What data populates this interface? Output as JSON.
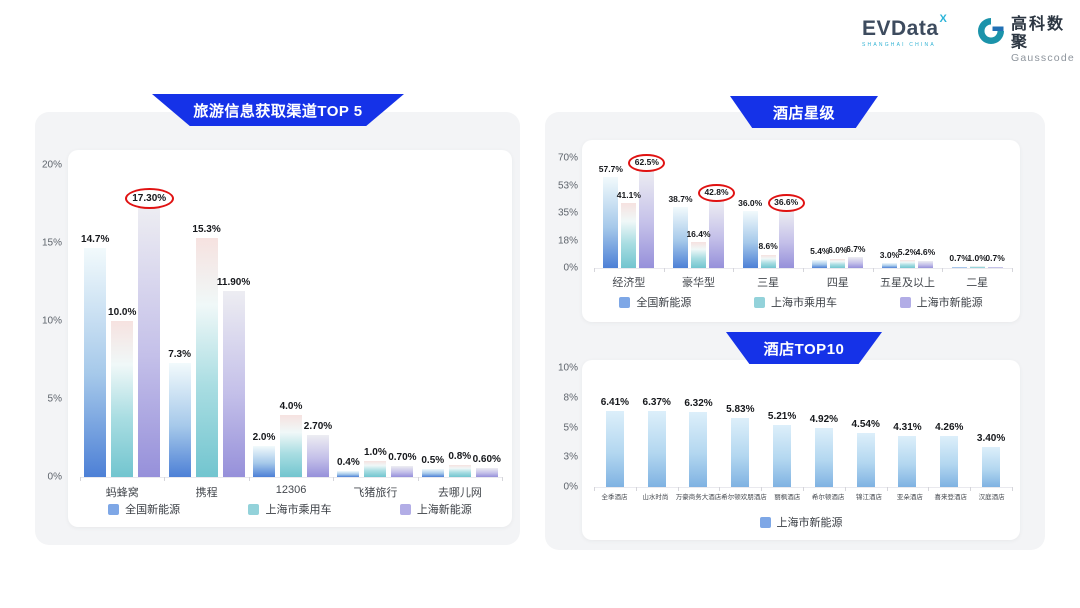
{
  "header": {
    "evdata": {
      "text": "EVData",
      "sup": "X",
      "sub": "SHANGHAI CHINA"
    },
    "gausscode": {
      "title": "高科数聚",
      "sub": "Gausscode"
    }
  },
  "colors": {
    "banner": "#1532e8",
    "circle": "#e01212",
    "panel_background": "#f3f4f6",
    "series": [
      {
        "name": "series-blue",
        "legend": "#7ea7e6",
        "gradient": [
          [
            "#f2fafc",
            0
          ],
          [
            "#a6c9ea",
            55
          ],
          [
            "#4d80d6",
            100
          ]
        ]
      },
      {
        "name": "series-teal",
        "legend": "#93d2da",
        "gradient": [
          [
            "#f6e2e0",
            0
          ],
          [
            "#f0f8f8",
            28
          ],
          [
            "#a9dde2",
            62
          ],
          [
            "#72c5cf",
            100
          ]
        ]
      },
      {
        "name": "series-purple",
        "legend": "#b2ade6",
        "gradient": [
          [
            "#ededf2",
            0
          ],
          [
            "#c4c0e9",
            55
          ],
          [
            "#9690da",
            100
          ]
        ]
      }
    ],
    "mono": {
      "name": "series-lightblue",
      "legend": "#7ea7e6",
      "gradient": [
        [
          "#ddeffa",
          0
        ],
        [
          "#b3d7f0",
          55
        ],
        [
          "#7fb2e2",
          100
        ]
      ]
    }
  },
  "chart_data": [
    {
      "type": "bar",
      "title": "旅游信息获取渠道TOP 5",
      "categories": [
        "蚂蜂窝",
        "携程",
        "12306",
        "飞猪旅行",
        "去哪儿网"
      ],
      "series": [
        {
          "name": "全国新能源",
          "values": [
            14.7,
            7.3,
            2.0,
            0.4,
            0.5
          ],
          "labels": [
            "14.7%",
            "7.3%",
            "2.0%",
            "0.4%",
            "0.5%"
          ]
        },
        {
          "name": "上海市乘用车",
          "values": [
            10.0,
            15.3,
            4.0,
            1.0,
            0.8
          ],
          "labels": [
            "10.0%",
            "15.3%",
            "4.0%",
            "1.0%",
            "0.8%"
          ]
        },
        {
          "name": "上海新能源",
          "values": [
            17.3,
            11.9,
            2.7,
            0.7,
            0.6
          ],
          "labels": [
            "17.30%",
            "11.90%",
            "2.70%",
            "0.70%",
            "0.60%"
          ]
        }
      ],
      "ylim": [
        0,
        20
      ],
      "yticks": [
        "0%",
        "5%",
        "10%",
        "15%",
        "20%"
      ],
      "grid": false,
      "legend_position": "bottom",
      "annotations": {
        "circled": [
          {
            "series": 2,
            "category": 0
          }
        ]
      }
    },
    {
      "type": "bar",
      "title": "酒店星级",
      "categories": [
        "经济型",
        "豪华型",
        "三星",
        "四星",
        "五星及以上",
        "二星"
      ],
      "series": [
        {
          "name": "全国新能源",
          "values": [
            57.7,
            38.7,
            36.0,
            5.4,
            3.0,
            0.7
          ],
          "labels": [
            "57.7%",
            "38.7%",
            "36.0%",
            "5.4%",
            "3.0%",
            "0.7%"
          ]
        },
        {
          "name": "上海市乘用车",
          "values": [
            41.1,
            16.4,
            8.6,
            6.0,
            5.2,
            1.0
          ],
          "labels": [
            "41.1%",
            "16.4%",
            "8.6%",
            "6.0%",
            "5.2%",
            "1.0%"
          ]
        },
        {
          "name": "上海市新能源",
          "values": [
            62.5,
            42.8,
            36.6,
            6.7,
            4.6,
            0.7
          ],
          "labels": [
            "62.5%",
            "42.8%",
            "36.6%",
            "6.7%",
            "4.6%",
            "0.7%"
          ]
        }
      ],
      "ylim": [
        0,
        70
      ],
      "yticks": [
        "0%",
        "18%",
        "35%",
        "53%",
        "70%"
      ],
      "grid": false,
      "legend_position": "bottom",
      "annotations": {
        "circled": [
          {
            "series": 2,
            "category": 0
          },
          {
            "series": 2,
            "category": 1
          },
          {
            "series": 2,
            "category": 2
          }
        ]
      }
    },
    {
      "type": "bar",
      "title": "酒店TOP10",
      "categories": [
        "全季酒店",
        "山水时尚",
        "万豪商务大酒店",
        "希尔顿欢朋酒店",
        "丽枫酒店",
        "希尔顿酒店",
        "锦江酒店",
        "亚朵酒店",
        "喜来登酒店",
        "汉庭酒店"
      ],
      "series": [
        {
          "name": "上海市新能源",
          "values": [
            6.41,
            6.37,
            6.32,
            5.83,
            5.21,
            4.92,
            4.54,
            4.31,
            4.26,
            3.4
          ],
          "labels": [
            "6.41%",
            "6.37%",
            "6.32%",
            "5.83%",
            "5.21%",
            "4.92%",
            "4.54%",
            "4.31%",
            "4.26%",
            "3.40%"
          ]
        }
      ],
      "ylim": [
        0,
        10
      ],
      "yticks": [
        "0%",
        "3%",
        "5%",
        "8%",
        "10%"
      ],
      "grid": false,
      "legend_position": "bottom"
    }
  ]
}
